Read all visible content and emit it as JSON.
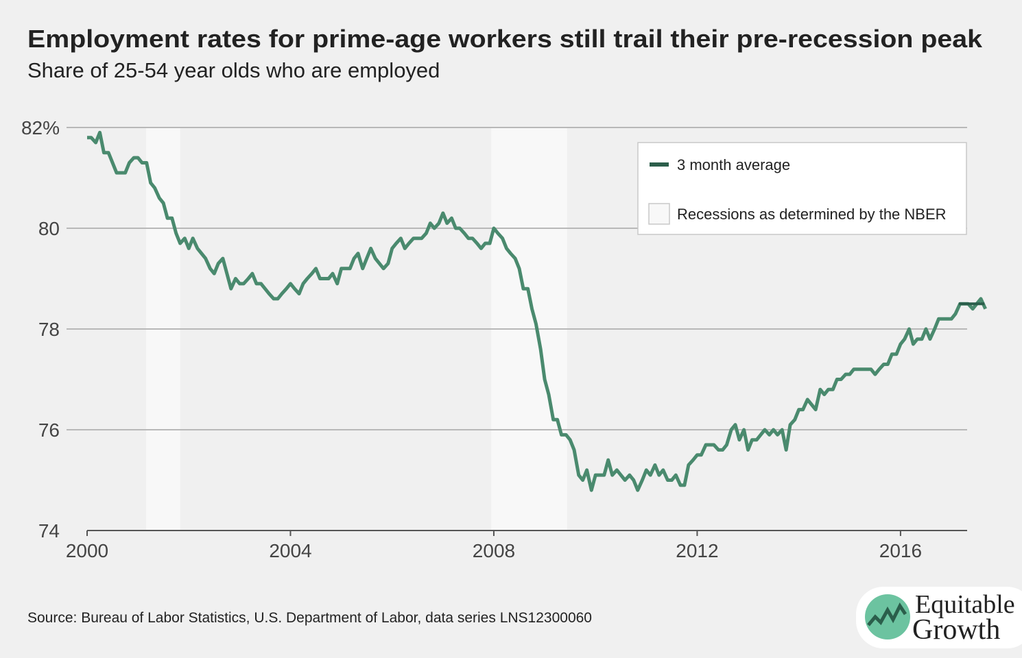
{
  "chart_data": {
    "type": "line",
    "title": "Employment rates for prime-age workers still trail their pre-recession peak",
    "subtitle": "Share of 25-54 year olds who are employed",
    "source": "Source: Bureau of Labor Statistics, U.S. Department of Labor, data series LNS12300060",
    "logo": [
      "Equitable",
      "Growth"
    ],
    "xlim": [
      2000,
      2017.31
    ],
    "xticks": [
      2000,
      2004,
      2008,
      2012,
      2016
    ],
    "ylim": [
      74,
      82
    ],
    "yticks": [
      74,
      76,
      78,
      80,
      {
        "value": 82,
        "label": "82%"
      }
    ],
    "grid": true,
    "legend": "top-right",
    "recessions": {
      "name": "Recessions as determined by the NBER",
      "color": "#f8f8f8",
      "ranges": [
        [
          2001.16,
          2001.83
        ],
        [
          2007.95,
          2009.44
        ]
      ]
    },
    "series": [
      {
        "color": "#4a8a6e",
        "x": [
          2000,
          2000.08,
          2000.17,
          2000.25,
          2000.33,
          2000.42,
          2000.5,
          2000.58,
          2000.67,
          2000.75,
          2000.83,
          2000.92,
          2001,
          2001.08,
          2001.17,
          2001.25,
          2001.33,
          2001.42,
          2001.5,
          2001.58,
          2001.67,
          2001.75,
          2001.83,
          2001.92,
          2002,
          2002.08,
          2002.17,
          2002.25,
          2002.33,
          2002.42,
          2002.5,
          2002.58,
          2002.67,
          2002.75,
          2002.83,
          2002.92,
          2003,
          2003.08,
          2003.17,
          2003.25,
          2003.33,
          2003.42,
          2003.5,
          2003.58,
          2003.67,
          2003.75,
          2003.83,
          2003.92,
          2004,
          2004.08,
          2004.17,
          2004.25,
          2004.33,
          2004.42,
          2004.5,
          2004.58,
          2004.67,
          2004.75,
          2004.83,
          2004.92,
          2005,
          2005.08,
          2005.17,
          2005.25,
          2005.33,
          2005.42,
          2005.5,
          2005.58,
          2005.67,
          2005.75,
          2005.83,
          2005.92,
          2006,
          2006.08,
          2006.17,
          2006.25,
          2006.33,
          2006.42,
          2006.5,
          2006.58,
          2006.67,
          2006.75,
          2006.83,
          2006.92,
          2007,
          2007.08,
          2007.17,
          2007.25,
          2007.33,
          2007.42,
          2007.5,
          2007.58,
          2007.67,
          2007.75,
          2007.83,
          2007.92,
          2008,
          2008.08,
          2008.17,
          2008.25,
          2008.33,
          2008.42,
          2008.5,
          2008.58,
          2008.67,
          2008.75,
          2008.83,
          2008.92,
          2009,
          2009.08,
          2009.17,
          2009.25,
          2009.33,
          2009.42,
          2009.5,
          2009.58,
          2009.67,
          2009.75,
          2009.83,
          2009.92,
          2010,
          2010.08,
          2010.17,
          2010.25,
          2010.33,
          2010.42,
          2010.5,
          2010.58,
          2010.67,
          2010.75,
          2010.83,
          2010.92,
          2011,
          2011.08,
          2011.17,
          2011.25,
          2011.33,
          2011.42,
          2011.5,
          2011.58,
          2011.67,
          2011.75,
          2011.83,
          2011.92,
          2012,
          2012.08,
          2012.17,
          2012.25,
          2012.33,
          2012.42,
          2012.5,
          2012.58,
          2012.67,
          2012.75,
          2012.83,
          2012.92,
          2013,
          2013.08,
          2013.17,
          2013.25,
          2013.33,
          2013.42,
          2013.5,
          2013.58,
          2013.67,
          2013.75,
          2013.83,
          2013.92,
          2014,
          2014.08,
          2014.17,
          2014.25,
          2014.33,
          2014.42,
          2014.5,
          2014.58,
          2014.67,
          2014.75,
          2014.83,
          2014.92,
          2015,
          2015.08,
          2015.17,
          2015.25,
          2015.33,
          2015.42,
          2015.5,
          2015.58,
          2015.67,
          2015.75,
          2015.83,
          2015.92,
          2016,
          2016.08,
          2016.17,
          2016.25,
          2016.33,
          2016.42,
          2016.5,
          2016.58,
          2016.67,
          2016.75,
          2016.83,
          2016.92,
          2017,
          2017.08,
          2017.17,
          2017.25,
          2017.33,
          2017.42,
          2017.5,
          2017.58,
          2017.67
        ],
        "values": [
          81.8,
          81.8,
          81.7,
          81.9,
          81.5,
          81.5,
          81.3,
          81.1,
          81.1,
          81.1,
          81.3,
          81.4,
          81.4,
          81.3,
          81.3,
          80.9,
          80.8,
          80.6,
          80.5,
          80.2,
          80.2,
          79.9,
          79.7,
          79.8,
          79.6,
          79.8,
          79.6,
          79.5,
          79.4,
          79.2,
          79.1,
          79.3,
          79.4,
          79.1,
          78.8,
          79.0,
          78.9,
          78.9,
          79.0,
          79.1,
          78.9,
          78.9,
          78.8,
          78.7,
          78.6,
          78.6,
          78.7,
          78.8,
          78.9,
          78.8,
          78.7,
          78.9,
          79.0,
          79.1,
          79.2,
          79.0,
          79.0,
          79.0,
          79.1,
          78.9,
          79.2,
          79.2,
          79.2,
          79.4,
          79.5,
          79.2,
          79.4,
          79.6,
          79.4,
          79.3,
          79.2,
          79.3,
          79.6,
          79.7,
          79.8,
          79.6,
          79.7,
          79.8,
          79.8,
          79.8,
          79.9,
          80.1,
          80.0,
          80.1,
          80.3,
          80.1,
          80.2,
          80.0,
          80.0,
          79.9,
          79.8,
          79.8,
          79.7,
          79.6,
          79.7,
          79.7,
          80.0,
          79.9,
          79.8,
          79.6,
          79.5,
          79.4,
          79.2,
          78.8,
          78.8,
          78.4,
          78.1,
          77.6,
          77.0,
          76.7,
          76.2,
          76.2,
          75.9,
          75.9,
          75.8,
          75.6,
          75.1,
          75.0,
          75.2,
          74.8,
          75.1,
          75.1,
          75.1,
          75.4,
          75.1,
          75.2,
          75.1,
          75.0,
          75.1,
          75.0,
          74.8,
          75.0,
          75.2,
          75.1,
          75.3,
          75.1,
          75.2,
          75.0,
          75.0,
          75.1,
          74.9,
          74.9,
          75.3,
          75.4,
          75.5,
          75.5,
          75.7,
          75.7,
          75.7,
          75.6,
          75.6,
          75.7,
          76.0,
          76.1,
          75.8,
          76.0,
          75.6,
          75.8,
          75.8,
          75.9,
          76.0,
          75.9,
          76.0,
          75.9,
          76.0,
          75.6,
          76.1,
          76.2,
          76.4,
          76.4,
          76.6,
          76.5,
          76.4,
          76.8,
          76.7,
          76.8,
          76.8,
          77.0,
          77.0,
          77.1,
          77.1,
          77.2,
          77.2,
          77.2,
          77.2,
          77.2,
          77.1,
          77.2,
          77.3,
          77.3,
          77.5,
          77.5,
          77.7,
          77.8,
          78.0,
          77.7,
          77.8,
          77.8,
          78.0,
          77.8,
          78.0,
          78.2,
          78.2,
          78.2,
          78.2,
          78.3,
          78.5,
          78.5,
          78.5,
          78.4,
          78.5,
          78.6,
          78.4
        ]
      },
      {
        "name": "3 month average",
        "color": "#2b5e4b",
        "x": [
          2017.15,
          2017.65
        ],
        "values": [
          78.5,
          78.5
        ]
      }
    ]
  }
}
